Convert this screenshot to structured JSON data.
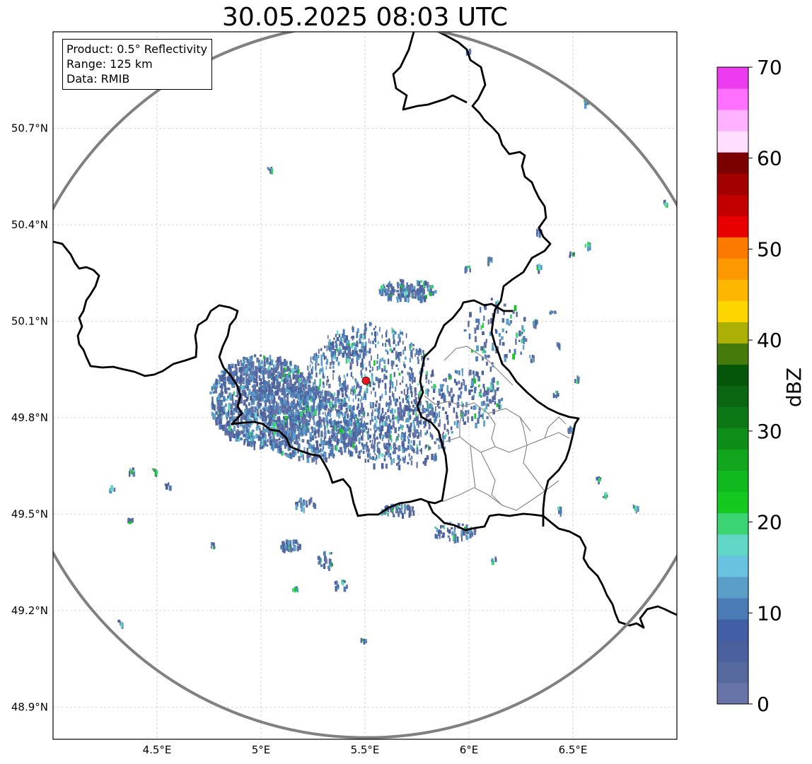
{
  "title": "30.05.2025 08:03 UTC",
  "info_box": {
    "product": "Product: 0.5° Reflectivity",
    "range": "Range: 125 km",
    "data": "Data: RMIB"
  },
  "map": {
    "lon_range": [
      4.0,
      7.0
    ],
    "lat_range": [
      48.8,
      51.0
    ],
    "x_ticks": [
      {
        "value": 4.5,
        "label": "4.5°E"
      },
      {
        "value": 5.0,
        "label": "5°E"
      },
      {
        "value": 5.5,
        "label": "5.5°E"
      },
      {
        "value": 6.0,
        "label": "6°E"
      },
      {
        "value": 6.5,
        "label": "6.5°E"
      }
    ],
    "y_ticks": [
      {
        "value": 48.9,
        "label": "48.9°N"
      },
      {
        "value": 49.2,
        "label": "49.2°N"
      },
      {
        "value": 49.5,
        "label": "49.5°N"
      },
      {
        "value": 49.8,
        "label": "49.8°N"
      },
      {
        "value": 50.1,
        "label": "50.1°N"
      },
      {
        "value": 50.4,
        "label": "50.4°N"
      },
      {
        "value": 50.7,
        "label": "50.7°N"
      }
    ],
    "radar_site": {
      "lon": 5.505,
      "lat": 49.915
    },
    "range_ring_color": "#808080",
    "radar_marker_color": "#e8141e",
    "border_color": "#000000"
  },
  "colorbar": {
    "label": "dBZ",
    "min": 0,
    "max": 70,
    "ticks": [
      {
        "value": 0,
        "label": "0"
      },
      {
        "value": 10,
        "label": "10"
      },
      {
        "value": 20,
        "label": "20"
      },
      {
        "value": 30,
        "label": "30"
      },
      {
        "value": 40,
        "label": "40"
      },
      {
        "value": 50,
        "label": "50"
      },
      {
        "value": 60,
        "label": "60"
      },
      {
        "value": 70,
        "label": "70"
      }
    ],
    "colors": [
      "#6873a8",
      "#56699f",
      "#4a5f9d",
      "#425fa6",
      "#4b7bb5",
      "#5a9fc8",
      "#67c3df",
      "#62d6c6",
      "#3bd472",
      "#13c81e",
      "#10b91e",
      "#10a51c",
      "#0e8d18",
      "#0b7815",
      "#0a6611",
      "#05560b",
      "#467a0a",
      "#adb004",
      "#fdd600",
      "#fdb700",
      "#fd9900",
      "#fd7a00",
      "#e80000",
      "#c30000",
      "#a30000",
      "#7b0000",
      "#ffdeff",
      "#ffb2ff",
      "#ff70ff",
      "#ec3aee"
    ]
  }
}
